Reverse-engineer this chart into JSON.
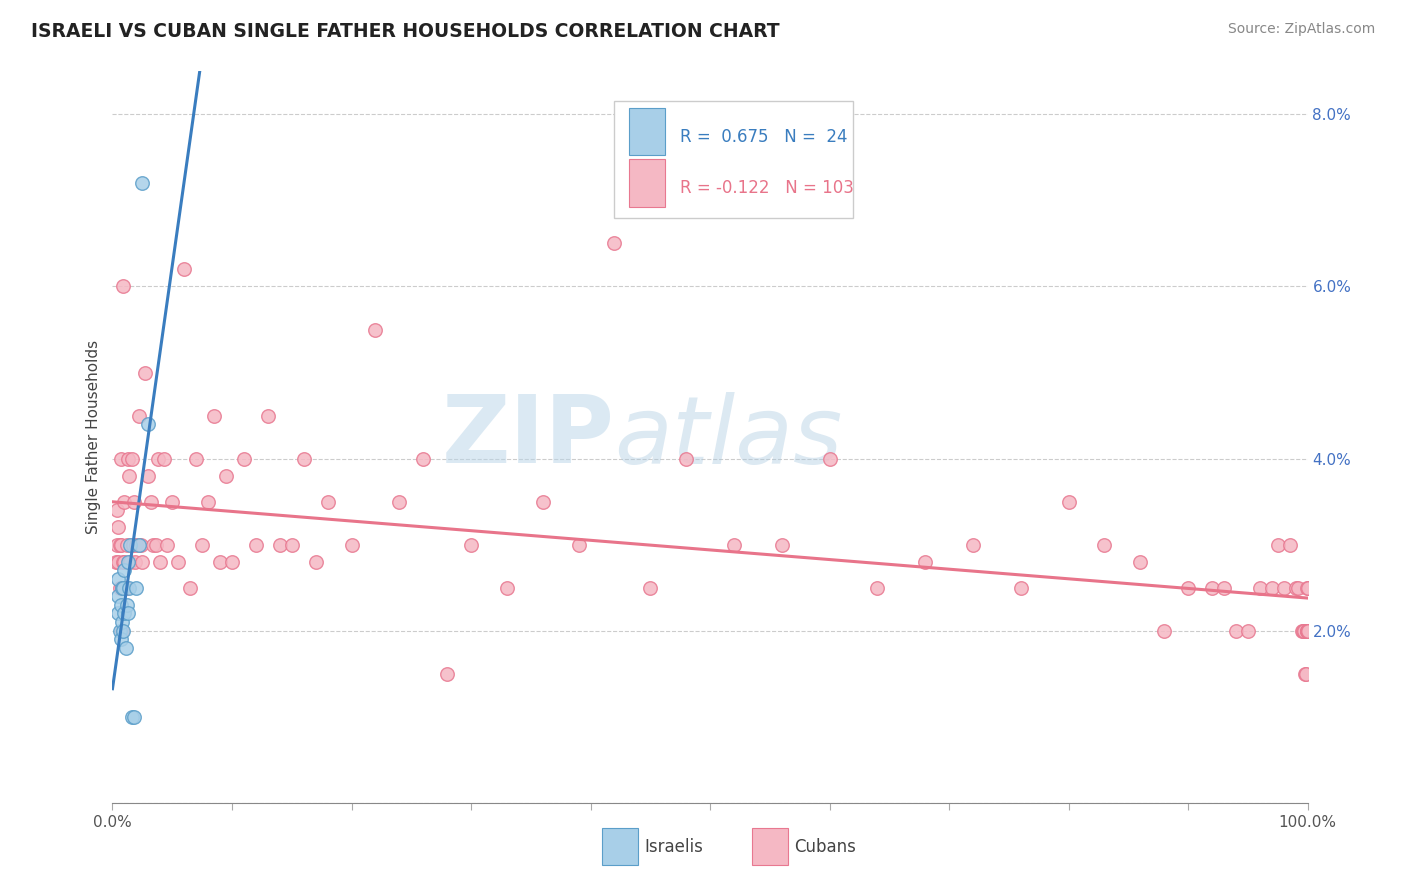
{
  "title": "ISRAELI VS CUBAN SINGLE FATHER HOUSEHOLDS CORRELATION CHART",
  "source": "Source: ZipAtlas.com",
  "ylabel": "Single Father Households",
  "xlim": [
    0,
    1.0
  ],
  "ylim": [
    0,
    0.085
  ],
  "yticks": [
    0.0,
    0.02,
    0.04,
    0.06,
    0.08
  ],
  "yticklabels": [
    "",
    "2.0%",
    "4.0%",
    "6.0%",
    "8.0%"
  ],
  "israeli_fill": "#a8cfe8",
  "israeli_edge": "#5b9ec9",
  "cuban_fill": "#f5b8c4",
  "cuban_edge": "#e87890",
  "israeli_line_color": "#3a7dbf",
  "cuban_line_color": "#e8748a",
  "R_israeli": 0.675,
  "N_israeli": 24,
  "R_cuban": -0.122,
  "N_cuban": 103,
  "watermark_zip": "ZIP",
  "watermark_atlas": "atlas",
  "israelis_x": [
    0.005,
    0.005,
    0.005,
    0.006,
    0.007,
    0.007,
    0.008,
    0.008,
    0.009,
    0.009,
    0.01,
    0.01,
    0.011,
    0.012,
    0.013,
    0.013,
    0.014,
    0.015,
    0.016,
    0.018,
    0.02,
    0.022,
    0.025,
    0.03
  ],
  "israelis_y": [
    0.022,
    0.024,
    0.026,
    0.02,
    0.019,
    0.023,
    0.021,
    0.025,
    0.02,
    0.025,
    0.022,
    0.027,
    0.018,
    0.023,
    0.022,
    0.028,
    0.025,
    0.03,
    0.01,
    0.01,
    0.025,
    0.03,
    0.072,
    0.044
  ],
  "cubans_x": [
    0.003,
    0.004,
    0.004,
    0.005,
    0.005,
    0.006,
    0.006,
    0.007,
    0.007,
    0.008,
    0.008,
    0.009,
    0.009,
    0.01,
    0.01,
    0.011,
    0.012,
    0.013,
    0.014,
    0.015,
    0.016,
    0.017,
    0.018,
    0.019,
    0.02,
    0.022,
    0.024,
    0.025,
    0.027,
    0.03,
    0.032,
    0.034,
    0.036,
    0.038,
    0.04,
    0.043,
    0.046,
    0.05,
    0.055,
    0.06,
    0.065,
    0.07,
    0.075,
    0.08,
    0.085,
    0.09,
    0.095,
    0.1,
    0.11,
    0.12,
    0.13,
    0.14,
    0.15,
    0.16,
    0.17,
    0.18,
    0.2,
    0.22,
    0.24,
    0.26,
    0.28,
    0.3,
    0.33,
    0.36,
    0.39,
    0.42,
    0.45,
    0.48,
    0.52,
    0.56,
    0.6,
    0.64,
    0.68,
    0.72,
    0.76,
    0.8,
    0.83,
    0.86,
    0.88,
    0.9,
    0.92,
    0.93,
    0.94,
    0.95,
    0.96,
    0.97,
    0.975,
    0.98,
    0.985,
    0.99,
    0.992,
    0.995,
    0.996,
    0.997,
    0.998,
    0.999,
    0.9992,
    0.9994,
    0.9996,
    0.9998,
    1.0,
    1.0,
    1.0
  ],
  "cubans_y": [
    0.028,
    0.03,
    0.034,
    0.028,
    0.032,
    0.025,
    0.03,
    0.03,
    0.04,
    0.02,
    0.025,
    0.028,
    0.06,
    0.028,
    0.035,
    0.025,
    0.03,
    0.04,
    0.038,
    0.028,
    0.04,
    0.03,
    0.035,
    0.028,
    0.03,
    0.045,
    0.03,
    0.028,
    0.05,
    0.038,
    0.035,
    0.03,
    0.03,
    0.04,
    0.028,
    0.04,
    0.03,
    0.035,
    0.028,
    0.062,
    0.025,
    0.04,
    0.03,
    0.035,
    0.045,
    0.028,
    0.038,
    0.028,
    0.04,
    0.03,
    0.045,
    0.03,
    0.03,
    0.04,
    0.028,
    0.035,
    0.03,
    0.055,
    0.035,
    0.04,
    0.015,
    0.03,
    0.025,
    0.035,
    0.03,
    0.065,
    0.025,
    0.04,
    0.03,
    0.03,
    0.04,
    0.025,
    0.028,
    0.03,
    0.025,
    0.035,
    0.03,
    0.028,
    0.02,
    0.025,
    0.025,
    0.025,
    0.02,
    0.02,
    0.025,
    0.025,
    0.03,
    0.025,
    0.03,
    0.025,
    0.025,
    0.02,
    0.02,
    0.02,
    0.015,
    0.015,
    0.02,
    0.02,
    0.025,
    0.02,
    0.02,
    0.025,
    0.02
  ]
}
